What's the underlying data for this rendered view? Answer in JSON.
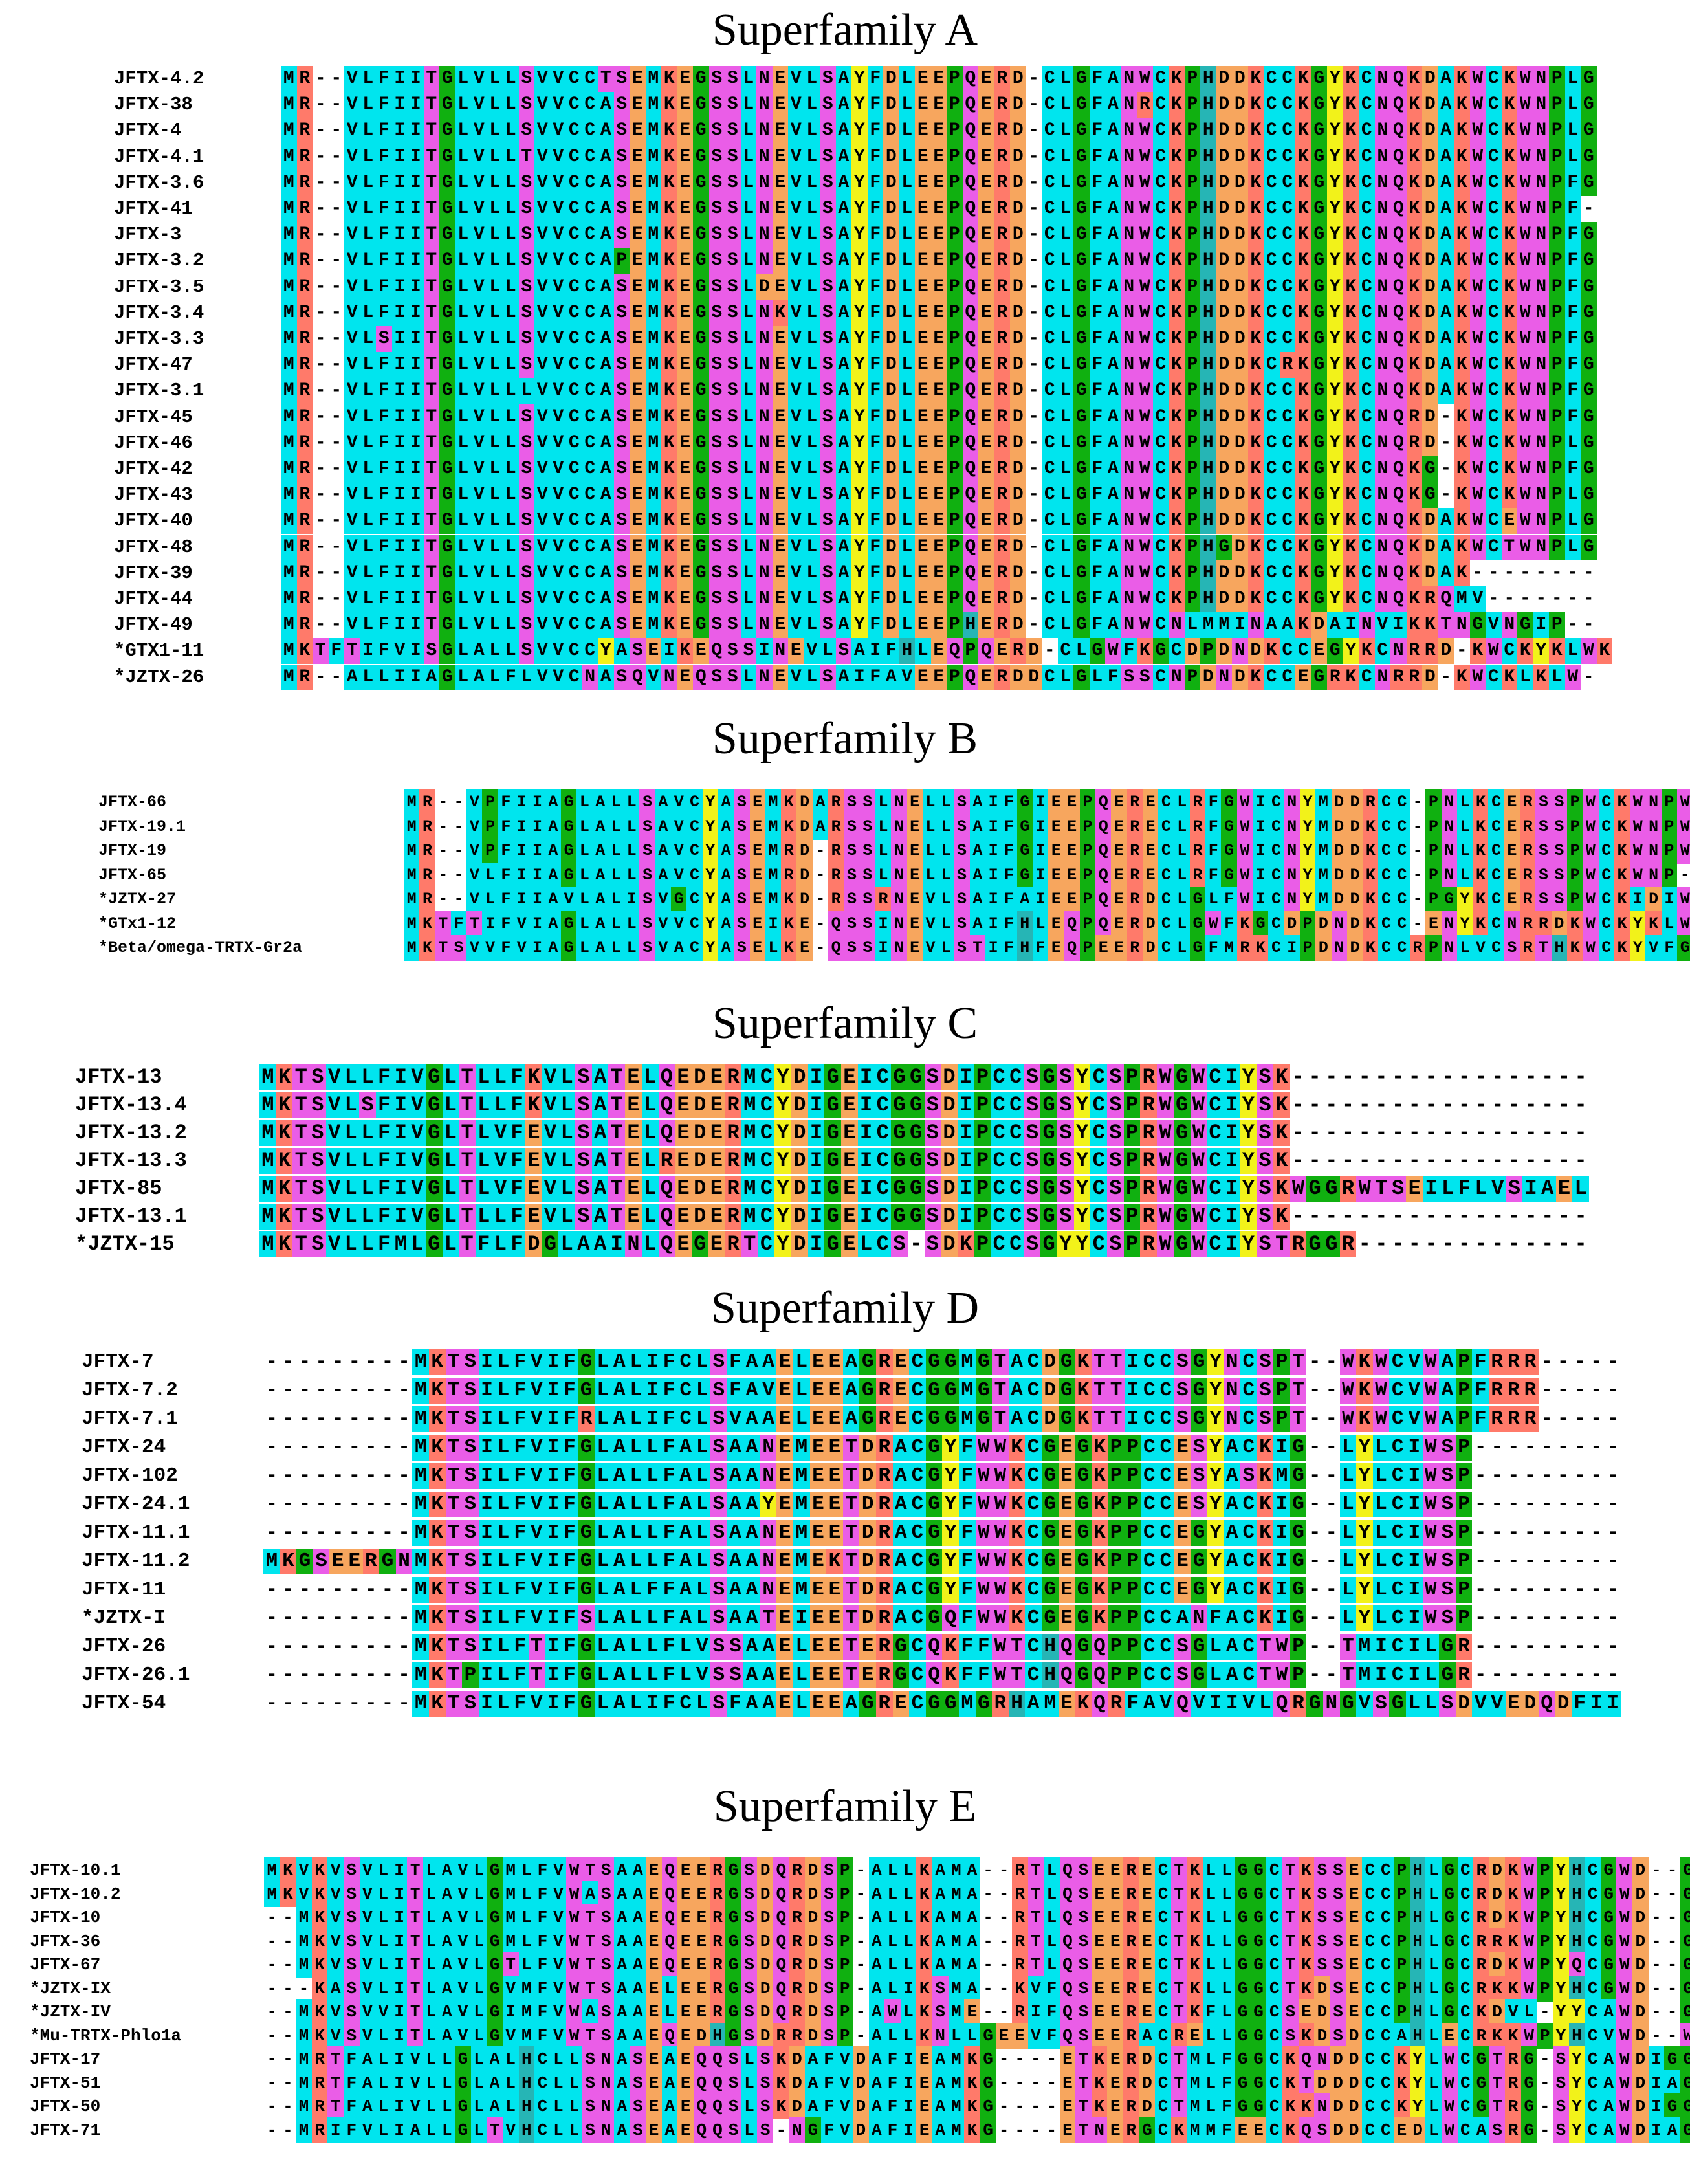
{
  "figure": {
    "superfamilies": [
      {
        "id": "sfA",
        "title": "Superfamily A",
        "rows": [
          {
            "name": "JFTX-4.2",
            "seq": "MR--VLFIITGLVLLSVVCCTSEMKEGSSLNEVLSAYFDLEEPQERD-CLGFANWCKPHDDKCCKGYKCNQKDAKWCKWNPLG"
          },
          {
            "name": "JFTX-38",
            "seq": "MR--VLFIITGLVLLSVVCCASEMKEGSSLNEVLSAYFDLEEPQERD-CLGFANRCKPHDDKCCKGYKCNQKDAKWCKWNPLG"
          },
          {
            "name": "JFTX-4",
            "seq": "MR--VLFIITGLVLLSVVCCASEMKEGSSLNEVLSAYFDLEEPQERD-CLGFANWCKPHDDKCCKGYKCNQKDAKWCKWNPLG"
          },
          {
            "name": "JFTX-4.1",
            "seq": "MR--VLFIITGLVLLTVVCCASEMKEGSSLNEVLSAYFDLEEPQERD-CLGFANWCKPHDDKCCKGYKCNQKDAKWCKWNPLG"
          },
          {
            "name": "JFTX-3.6",
            "seq": "MR--VLFIITGLVLLSVVCCASEMKEGSSLNEVLSAYFDLEEPQERD-CLGFANWCKPHDDKCCKGYKCNQKDAKWCKWNPFG"
          },
          {
            "name": "JFTX-41",
            "seq": "MR--VLFIITGLVLLSVVCCASEMKEGSSLNEVLSAYFDLEEPQERD-CLGFANWCKPHDDKCCKGYKCNQKDAKWCKWNPF-"
          },
          {
            "name": "JFTX-3",
            "seq": "MR--VLFIITGLVLLSVVCCASEMKEGSSLNEVLSAYFDLEEPQERD-CLGFANWCKPHDDKCCKGYKCNQKDAKWCKWNPFG"
          },
          {
            "name": "JFTX-3.2",
            "seq": "MR--VLFIITGLVLLSVVCCAPEMKEGSSLNEVLSAYFDLEEPQERD-CLGFANWCKPHDDKCCKGYKCNQKDAKWCKWNPFG"
          },
          {
            "name": "JFTX-3.5",
            "seq": "MR--VLFIITGLVLLSVVCCASEMKEGSSLDEVLSAYFDLEEPQERD-CLGFANWCKPHDDKCCKGYKCNQKDAKWCKWNPFG"
          },
          {
            "name": "JFTX-3.4",
            "seq": "MR--VLFIITGLVLLSVVCCASEMKEGSSLNKVLSAYFDLEEPQERD-CLGFANWCKPHDDKCCKGYKCNQKDAKWCKWNPFG"
          },
          {
            "name": "JFTX-3.3",
            "seq": "MR--VLSIITGLVLLSVVCCASEMKEGSSLNEVLSAYFDLEEPQERD-CLGFANWCKPHDDKCCKGYKCNQKDAKWCKWNPFG"
          },
          {
            "name": "JFTX-47",
            "seq": "MR--VLFIITGLVLLSVVCCASEMKEGSSLNEVLSAYFDLEEPQERD-CLGFANWCKPHDDKCRKGYKCNQKDAKWCKWNPFG"
          },
          {
            "name": "JFTX-3.1",
            "seq": "MR--VLFIITGLVLLLVVCCASEMKEGSSLNEVLSAYFDLEEPQERD-CLGFANWCKPHDDKCCKGYKCNQKDAKWCKWNPFG"
          },
          {
            "name": "JFTX-45",
            "seq": "MR--VLFIITGLVLLSVVCCASEMKEGSSLNEVLSAYFDLEEPQERD-CLGFANWCKPHDDKCCKGYKCNQRD-KWCKWNPFG"
          },
          {
            "name": "JFTX-46",
            "seq": "MR--VLFIITGLVLLSVVCCASEMKEGSSLNEVLSAYFDLEEPQERD-CLGFANWCKPHDDKCCKGYKCNQRD-KWCKWNPLG"
          },
          {
            "name": "JFTX-42",
            "seq": "MR--VLFIITGLVLLSVVCCASEMKEGSSLNEVLSAYFDLEEPQERD-CLGFANWCKPHDDKCCKGYKCNQKG-KWCKWNPFG"
          },
          {
            "name": "JFTX-43",
            "seq": "MR--VLFIITGLVLLSVVCCASEMKEGSSLNEVLSAYFDLEEPQERD-CLGFANWCKPHDDKCCKGYKCNQKG-KWCKWNPLG"
          },
          {
            "name": "JFTX-40",
            "seq": "MR--VLFIITGLVLLSVVCCASEMKEGSSLNEVLSAYFDLEEPQERD-CLGFANWCKPHDDKCCKGYKCNQKDAKWCEWNPLG"
          },
          {
            "name": "JFTX-48",
            "seq": "MR--VLFIITGLVLLSVVCCASEMKEGSSLNEVLSAYFDLEEPQERD-CLGFANWCKPHGDKCCKGYKCNQKDAKWCTWNPLG"
          },
          {
            "name": "JFTX-39",
            "seq": "MR--VLFIITGLVLLSVVCCASEMKEGSSLNEVLSAYFDLEEPQERD-CLGFANWCKPHDDKCCKGYKCNQKDAK--------"
          },
          {
            "name": "JFTX-44",
            "seq": "MR--VLFIITGLVLLSVVCCASEMKEGSSLNEVLSAYFDLEEPQERD-CLGFANWCKPHDDKCCKGYKCNQKRQMV-------"
          },
          {
            "name": "JFTX-49",
            "seq": "MR--VLFIITGLVLLSVVCCASEMKEGSSLNEVLSAYFDLEEPHERD-CLGFANWCNLMMINAAKDAINVIKKTNGVNGIP--"
          },
          {
            "name": "*GTX1-11",
            "seq": "MKTFTIFVISGLALLSVVCCYASEIKEQSSINEVLSAIFHLEQPQERD-CLGWFKGCDPDNDKCCEGYKCNRRD-KWCKYKLWK"
          },
          {
            "name": "*JZTX-26",
            "seq": "MR--ALLIIAGLALFLVVCNASQVNEQSSLNEVLSAIFAVEEPQERDDCLGLFSSCNPDNDKCCEGRKCNRRD-KWCKLKLW-"
          }
        ]
      },
      {
        "id": "sfB",
        "title": "Superfamily B",
        "rows": [
          {
            "name": "JFTX-66",
            "seq": "MR--VPFIIAGLALLSAVCYASEMKDARSSLNELLSAIFGIEEPQERECLRFGWICNYMDDRCC-PNLKCERSSPWCKWNPWGK"
          },
          {
            "name": "JFTX-19.1",
            "seq": "MR--VPFIIAGLALLSAVCYASEMKDARSSLNELLSAIFGIEEPQERECLRFGWICNYMDDKCC-PNLKCERSSPWCKWNPWGK"
          },
          {
            "name": "JFTX-19",
            "seq": "MR--VPFIIAGLALLSAVCYASEMRD-RSSLNELLSAIFGIEEPQERECLRFGWICNYMDDKCC-PNLKCERSSPWCKWNPWGK"
          },
          {
            "name": "JFTX-65",
            "seq": "MR--VLFIIAGLALLSAVCYASEMRD-RSSLNELLSAIFGIEEPQERECLRFGWICNYMDDKCC-PNLKCERSSPWCKWNP---"
          },
          {
            "name": "*JZTX-27",
            "seq": "MR--VLFIIAVLALISVGCYASEMKD-RSSRNEVLSAIFAIEEPQERDCLGLFWICNYMDDKCC-PGYKCERSSPWCKIDIWG-"
          },
          {
            "name": "*GTx1-12",
            "seq": "MKTFTIFVIAGLALLSVVCYASEIKE-QSSINEVLSAIFHLEQPQERDCLGWFKGCDPDNDKCC-ENYKCNRRDKWCKYKLWK-"
          },
          {
            "name": "*Beta/omega-TRTX-Gr2a",
            "seq": "MKTSVVFVIAGLALLSVACYASELKE-QSSINEVLSTIFHFEQPEERDCLGFMRKCIPDNDKCCRPNLVCSRTHKWCKYVFGK-"
          }
        ]
      },
      {
        "id": "sfC",
        "title": "Superfamily C",
        "rows": [
          {
            "name": "JFTX-13",
            "seq": "MKTSVLLFIVGLTLLFKVLSATELQEDERMCYDIGEICGGSDIPCCSGSYCSPRWGWCIYSK------------------"
          },
          {
            "name": "JFTX-13.4",
            "seq": "MKTSVLSFIVGLTLLFKVLSATELQEDERMCYDIGEICGGSDIPCCSGSYCSPRWGWCIYSK------------------"
          },
          {
            "name": "JFTX-13.2",
            "seq": "MKTSVLLFIVGLTLVFEVLSATELQEDERMCYDIGEICGGSDIPCCSGSYCSPRWGWCIYSK------------------"
          },
          {
            "name": "JFTX-13.3",
            "seq": "MKTSVLLFIVGLTLVFEVLSATELREDERMCYDIGEICGGSDIPCCSGSYCSPRWGWCIYSK------------------"
          },
          {
            "name": "JFTX-85",
            "seq": "MKTSVLLFIVGLTLVFEVLSATELQEDERMCYDIGEICGGSDIPCCSGSYCSPRWGWCIYSKWGGRWTSEILFLVSIAEL"
          },
          {
            "name": "JFTX-13.1",
            "seq": "MKTSVLLFIVGLTLLFEVLSATELQEDERMCYDIGEICGGSDIPCCSGSYCSPRWGWCIYSK------------------"
          },
          {
            "name": "*JZTX-15",
            "seq": "MKTSVLLFMLGLTFLFDGLAAINLQEGERTCYDIGELCS-SDKPCCSGYYCSPRWGWCIYSTRGGR--------------"
          }
        ]
      },
      {
        "id": "sfD",
        "title": "Superfamily D",
        "rows": [
          {
            "name": "JFTX-7",
            "seq": "---------MKTSILFVIFGLALIFCLSFAAELEEAGRECGGMGTACDGKTTICCSGYNCSPT--WKWCVWAPFRRR-----"
          },
          {
            "name": "JFTX-7.2",
            "seq": "---------MKTSILFVIFGLALIFCLSFAVELEEAGRECGGMGTACDGKTTICCSGYNCSPT--WKWCVWAPFRRR-----"
          },
          {
            "name": "JFTX-7.1",
            "seq": "---------MKTSILFVIFRLALIFCLSVAAELEEAGRECGGMGTACDGKTTICCSGYNCSPT--WKWCVWAPFRRR-----"
          },
          {
            "name": "JFTX-24",
            "seq": "---------MKTSILFVIFGLALLFALSAANEMEETDRACGYFWWKCGEGKPPCCESYACKIG--LYLCIWSP---------"
          },
          {
            "name": "JFTX-102",
            "seq": "---------MKTSILFVIFGLALLFALSAANEMEETDRACGYFWWKCGEGKPPCCESYASKMG--LYLCIWSP---------"
          },
          {
            "name": "JFTX-24.1",
            "seq": "---------MKTSILFVIFGLALLFALSAAYEMEETDRACGYFWWKCGEGKPPCCESYACKIG--LYLCIWSP---------"
          },
          {
            "name": "JFTX-11.1",
            "seq": "---------MKTSILFVIFGLALLFALSAANEMEETDRACGYFWWKCGEGKPPCCEGYACKIG--LYLCIWSP---------"
          },
          {
            "name": "JFTX-11.2",
            "seq": "MKGSEERGNMKTSILFVIFGLALLFALSAANEMEKTDRACGYFWWKCGEGKPPCCEGYACKIG--LYLCIWSP---------"
          },
          {
            "name": "JFTX-11",
            "seq": "---------MKTSILFVIFGLALFFALSAANEMEETDRACGYFWWKCGEGKPPCCEGYACKIG--LYLCIWSP---------"
          },
          {
            "name": "*JZTX-I",
            "seq": "---------MKTSILFVIFSLALLFALSAATEIEETDRACGQFWWKCGEGKPPCCANFACKIG--LYLCIWSP---------"
          },
          {
            "name": "JFTX-26",
            "seq": "---------MKTSILFTIFGLALLFLVSSAAELEETERGCQKFFWTCHQGQPPCCSGLACTWP--TMICILGR---------"
          },
          {
            "name": "JFTX-26.1",
            "seq": "---------MKTPILFTIFGLALLFLVSSAAELEETERGCQKFFWTCHQGQPPCCSGLACTWP--TMICILGR---------"
          },
          {
            "name": "JFTX-54",
            "seq": "---------MKTSILFVIFGLALIFCLSFAAELEEAGRECGGMGRHAMEKQRFAVQVIIVLQRGNGVSGLLSDVVEDQDFII"
          }
        ]
      },
      {
        "id": "sfE",
        "title": "Superfamily E",
        "rows": [
          {
            "name": "JFTX-10.1",
            "seq": "MKVKVSVLITLAVLGMLFVWTSAAEQEERGSDQRDSP-ALLKAMA--RTLQSEERECTKLLGGCTKSSECCPHLGCRDKWPYHCGWD--GTFGK-"
          },
          {
            "name": "JFTX-10.2",
            "seq": "MKVKVSVLITLAVLGMLFVWASAAEQEERGSDQRDSP-ALLKAMA--RTLQSEERECTKLLGGCTKSSECCPHLGCRDKWPYHCGWD--GTFGK-"
          },
          {
            "name": "JFTX-10",
            "seq": "--MKVSVLITLAVLGMLFVWTSAAEQEERGSDQRDSP-ALLKAMA--RTLQSEERECTKLLGGCTKSSECCPHLGCRDKWPYHCGWD--GTFGK-"
          },
          {
            "name": "JFTX-36",
            "seq": "--MKVSVLITLAVLGMLFVWTSAAEQEERGSDQRDSP-ALLKAMA--RTLQSEERECTKLLGGCTKSSECCPHLGCRRKWPYHCGWD--GTFGK-"
          },
          {
            "name": "JFTX-67",
            "seq": "--MKVSVLITLAVLGTLFVWTSAAEQEERGSDQRDSP-ALLKAMA--RTLQSEERECTKLLGGCTKSSECCPHLGCRDKWPYQCGWD--GTFGK-"
          },
          {
            "name": "*JZTX-IX",
            "seq": "---KASVLITLAVLGVMFVWTSAAELEERGSDQRDSP-ALIKSMA--KVFQSEERECTKLLGGCTKDSECCPHLGCRKKWPYHCGWD--GTFGK-"
          },
          {
            "name": "*JZTX-IV",
            "seq": "--MKVSVVITLAVLGIMFVWASAAELEERGSDQRDSP-AWLKSME--RIFQSEERECTKFLGGCSEDSECCPHLGCKDVL-YYCAWD--GTFGK-"
          },
          {
            "name": "*Mu-TRTX-Phlo1a",
            "seq": "--MKVSVLITLAVLGVMFVWTSAAEQEDHGSDRRDSP-ALLKNLLGEEVFQSEERACRELLGGCSKDSDCCAHLECRKKWPYHCVWD--WTIGK-"
          },
          {
            "name": "JFTX-17",
            "seq": "--MRTFALIVLLGLALHCLLSNASEAEQQSLSKDAFVDAFIEAMKG----ETKERDCTMLFGGCKQNDDCCKYLWCGTRG-SYCAWDIGGHRSRR"
          },
          {
            "name": "JFTX-51",
            "seq": "--MRTFALIVLLGLALHCLLSNASEAEQQSLSKDAFVDAFIEAMKG----ETKERDCTMLFGGCKTDDDCCKYLWCGTRG-SYCAWDIAGHRSRR"
          },
          {
            "name": "JFTX-50",
            "seq": "--MRTFALIVLLGLALHCLLSNASEAEQQSLSKDAFVDAFIEAMKG----ETKERDCTMLFGGCKKNDDCCKYLWCGTRG-SYCAWDIGGHRSRR"
          },
          {
            "name": "JFTX-71",
            "seq": "--MRIFVLIALLGLTVHCLLSNASEAEQQSLS-NGFVDAFIEAMKG----ETNERGCKMMFEECKQSDDCCEDLWCASRG-SYCAWDIAGRRDRR"
          }
        ]
      }
    ]
  }
}
